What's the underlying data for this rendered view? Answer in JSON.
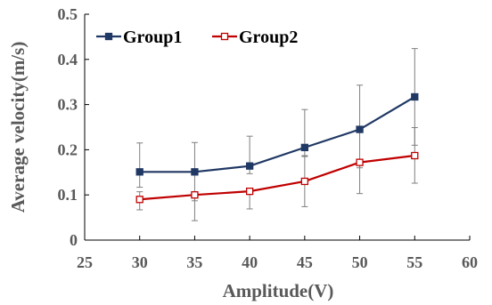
{
  "chart_data": {
    "type": "line",
    "xlabel": "Amplitude(V)",
    "ylabel": "Average velocity(m/s)",
    "xlim": [
      25,
      60
    ],
    "ylim": [
      0,
      0.5
    ],
    "x_ticks": [
      "25",
      "30",
      "35",
      "40",
      "45",
      "50",
      "55",
      "60"
    ],
    "y_ticks": [
      "0",
      "0.1",
      "0.2",
      "0.3",
      "0.4",
      "0.5"
    ],
    "grid": false,
    "legend_position": "top-left",
    "series": [
      {
        "name": "Group1",
        "color": "#203864",
        "marker": "filled-square",
        "x": [
          30,
          35,
          40,
          45,
          50,
          55
        ],
        "y": [
          0.151,
          0.151,
          0.164,
          0.205,
          0.245,
          0.317
        ],
        "error_low": [
          0.117,
          0.087,
          0.147,
          0.185,
          0.16,
          0.21
        ],
        "error_high": [
          0.215,
          0.216,
          0.23,
          0.289,
          0.343,
          0.424
        ]
      },
      {
        "name": "Group2",
        "color": "#C00000",
        "marker": "hollow-square",
        "x": [
          30,
          35,
          40,
          45,
          50,
          55
        ],
        "y": [
          0.09,
          0.1,
          0.108,
          0.13,
          0.172,
          0.187
        ],
        "error_low": [
          0.067,
          0.043,
          0.069,
          0.074,
          0.103,
          0.126
        ],
        "error_high": [
          0.107,
          0.1,
          0.108,
          0.187,
          0.172,
          0.249
        ]
      }
    ]
  }
}
